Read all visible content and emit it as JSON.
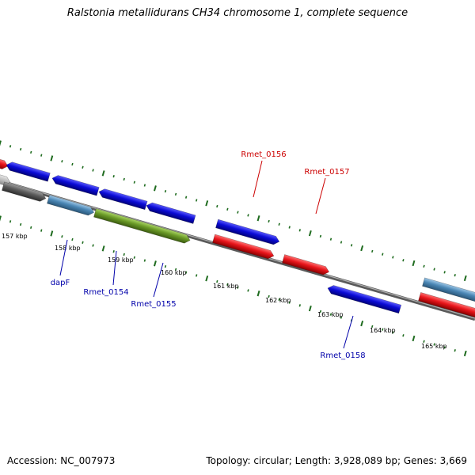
{
  "title": "Ralstonia metallidurans CH34 chromosome 1, complete sequence",
  "footer": {
    "accession": "Accession: NC_007973",
    "topology": "Topology: circular; Length: 3,928,089 bp; Genes: 3,669"
  },
  "colors": {
    "backbone": "#7f7f7f",
    "ticks": "#1e6b1e",
    "label_blue": "#0000aa",
    "label_red": "#cc0000",
    "blue": "#0b0bd6",
    "red": "#e8151b",
    "steel": "#4a86b4",
    "olive": "#6a9a27",
    "gray": "#5c5c5c",
    "lightgray": "#bdbdbd"
  },
  "ticks": {
    "labels": [
      "157 kbp",
      "158 kbp",
      "159 kbp",
      "160 kbp",
      "161 kbp",
      "162 kbp",
      "163 kbp",
      "164 kbp",
      "165 kbp"
    ]
  },
  "genes": {
    "labels": [
      {
        "text": "dapF",
        "color": "blue"
      },
      {
        "text": "Rmet_0154",
        "color": "blue"
      },
      {
        "text": "Rmet_0155",
        "color": "blue"
      },
      {
        "text": "Rmet_0156",
        "color": "red"
      },
      {
        "text": "Rmet_0157",
        "color": "red"
      },
      {
        "text": "Rmet_0158",
        "color": "blue"
      }
    ]
  }
}
